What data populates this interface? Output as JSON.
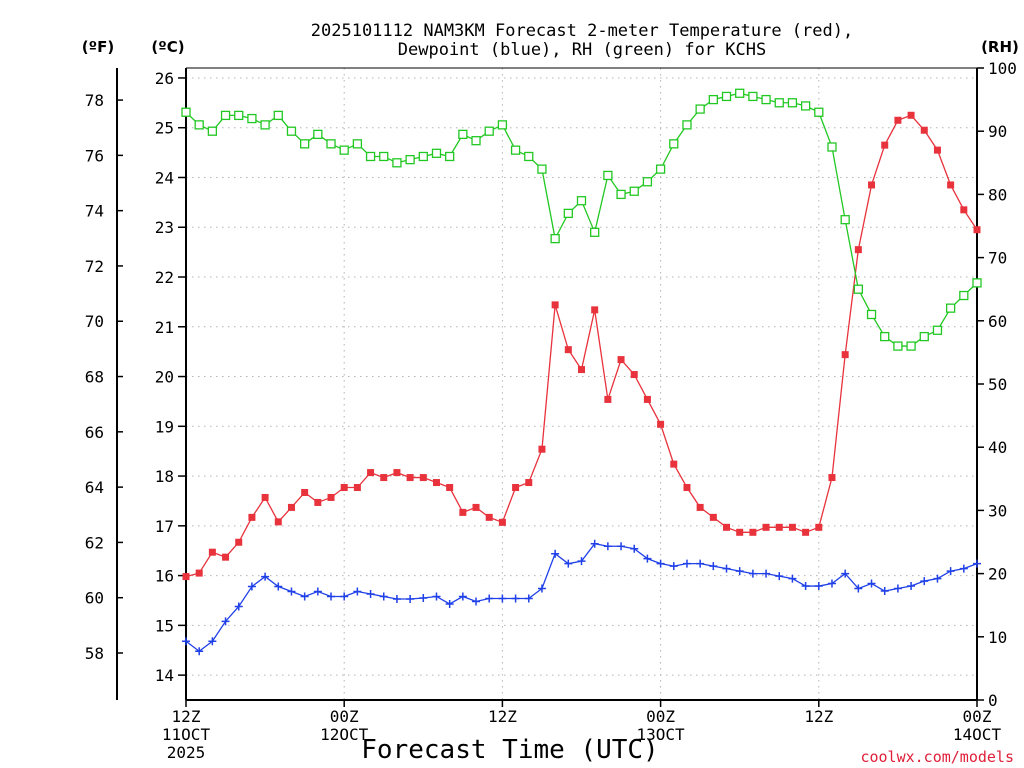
{
  "chart_data": {
    "type": "line",
    "title_lines": [
      "2025101112 NAM3KM Forecast 2-meter Temperature (red),",
      "Dewpoint (blue), RH (green) for KCHS"
    ],
    "xlabel": "Forecast Time (UTC)",
    "credit": "coolwx.com/models",
    "unit_labels": {
      "fahrenheit": "(ºF)",
      "celsius": "(ºC)",
      "rh": "(RH)"
    },
    "x_hours_range": [
      0,
      60
    ],
    "x_ticks": [
      {
        "hour": 0,
        "lines": [
          "12Z",
          "11OCT",
          "2025"
        ]
      },
      {
        "hour": 12,
        "lines": [
          "00Z",
          "12OCT"
        ]
      },
      {
        "hour": 24,
        "lines": [
          "12Z"
        ]
      },
      {
        "hour": 36,
        "lines": [
          "00Z",
          "13OCT"
        ]
      },
      {
        "hour": 48,
        "lines": [
          "12Z"
        ]
      },
      {
        "hour": 60,
        "lines": [
          "00Z",
          "14OCT"
        ]
      }
    ],
    "celsius_axis": {
      "range": [
        13.5,
        26.2
      ],
      "ticks": [
        "14",
        "15",
        "16",
        "17",
        "18",
        "19",
        "20",
        "21",
        "22",
        "23",
        "24",
        "25",
        "26"
      ]
    },
    "fahrenheit_axis": {
      "ticks": [
        "58",
        "60",
        "62",
        "64",
        "66",
        "68",
        "70",
        "72",
        "74",
        "76",
        "78"
      ]
    },
    "rh_axis": {
      "range": [
        0,
        100
      ],
      "ticks": [
        "0",
        "10",
        "20",
        "30",
        "40",
        "50",
        "60",
        "70",
        "80",
        "90",
        "100"
      ]
    },
    "grid": true,
    "series": [
      {
        "name": "Temperature",
        "color": "#e8323c",
        "marker": "filled-square",
        "axis": "celsius",
        "values": [
          15.98,
          16.05,
          16.47,
          16.37,
          16.67,
          17.17,
          17.57,
          17.08,
          17.37,
          17.67,
          17.47,
          17.57,
          17.77,
          17.77,
          18.07,
          17.97,
          18.07,
          17.97,
          17.97,
          17.87,
          17.77,
          17.27,
          17.37,
          17.17,
          17.07,
          17.77,
          17.87,
          18.54,
          21.44,
          20.54,
          20.14,
          21.34,
          19.54,
          20.34,
          20.04,
          19.54,
          19.04,
          18.24,
          17.77,
          17.37,
          17.17,
          16.97,
          16.87,
          16.87,
          16.97,
          16.97,
          16.97,
          16.87,
          16.97,
          17.97,
          20.44,
          22.55,
          23.85,
          24.65,
          25.15,
          25.25,
          24.95,
          24.55,
          23.85,
          23.35,
          22.95
        ]
      },
      {
        "name": "Dewpoint",
        "color": "#2040e8",
        "marker": "plus",
        "axis": "celsius",
        "values": [
          14.68,
          14.48,
          14.68,
          15.08,
          15.38,
          15.78,
          15.98,
          15.78,
          15.68,
          15.58,
          15.68,
          15.58,
          15.58,
          15.68,
          15.63,
          15.58,
          15.53,
          15.53,
          15.55,
          15.58,
          15.43,
          15.58,
          15.48,
          15.54,
          15.54,
          15.54,
          15.54,
          15.74,
          16.44,
          16.24,
          16.29,
          16.64,
          16.59,
          16.59,
          16.54,
          16.34,
          16.24,
          16.19,
          16.24,
          16.24,
          16.19,
          16.14,
          16.09,
          16.04,
          16.04,
          15.99,
          15.94,
          15.79,
          15.79,
          15.84,
          16.04,
          15.74,
          15.84,
          15.69,
          15.74,
          15.79,
          15.89,
          15.94,
          16.09,
          16.14,
          16.24
        ]
      },
      {
        "name": "RH",
        "color": "#22c822",
        "marker": "open-square",
        "axis": "rh",
        "values": [
          93,
          91,
          90,
          92.5,
          92.5,
          92,
          91,
          92.5,
          90,
          88,
          89.5,
          88,
          87,
          88,
          86,
          86,
          85,
          85.5,
          86,
          86.5,
          86,
          89.5,
          88.5,
          90,
          91,
          87,
          86,
          84,
          73,
          77,
          79,
          74,
          83,
          80,
          80.5,
          82,
          84,
          88,
          91,
          93.5,
          95,
          95.5,
          96,
          95.5,
          95,
          94.5,
          94.5,
          94,
          93,
          87.5,
          76,
          65,
          61,
          57.5,
          56,
          56,
          57.5,
          58.5,
          62,
          64,
          66
        ]
      }
    ]
  }
}
